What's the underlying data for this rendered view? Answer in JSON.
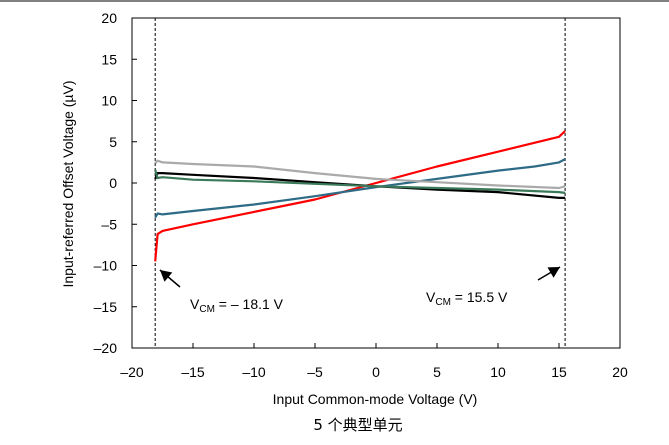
{
  "chart_data": {
    "type": "line",
    "title": "",
    "xlabel": "Input Common-mode Voltage (V)",
    "ylabel": "Input-referred Offset Voltage (µV)",
    "caption": "5 个典型单元",
    "xlim": [
      -20,
      20
    ],
    "ylim": [
      -20,
      20
    ],
    "x_ticks": [
      -20,
      -15,
      -10,
      -5,
      0,
      5,
      10,
      15,
      20
    ],
    "y_ticks": [
      -20,
      -15,
      -10,
      -5,
      0,
      5,
      10,
      15,
      20
    ],
    "x_tick_labels": [
      "–20",
      "–15",
      "–10",
      "–5",
      "0",
      "5",
      "10",
      "15",
      "20"
    ],
    "y_tick_labels": [
      "–20",
      "–15",
      "–10",
      "–5",
      "0",
      "5",
      "10",
      "15",
      "20"
    ],
    "grid": false,
    "series": [
      {
        "color": "#ff0000",
        "x": [
          -18.1,
          -17.9,
          -17.5,
          -15,
          -10,
          -5,
          0,
          5,
          10,
          15,
          15.5
        ],
        "y": [
          -9.5,
          -6.2,
          -5.8,
          -5.0,
          -3.5,
          -2.0,
          0.0,
          2.0,
          3.8,
          5.6,
          6.3
        ]
      },
      {
        "color": "#2e6b86",
        "x": [
          -18.1,
          -17.9,
          -17.5,
          -15,
          -10,
          -5,
          0,
          5,
          10,
          13,
          15,
          15.5
        ],
        "y": [
          -4.2,
          -3.7,
          -3.8,
          -3.4,
          -2.6,
          -1.6,
          -0.5,
          0.5,
          1.5,
          2.0,
          2.5,
          2.9
        ]
      },
      {
        "color": "#000000",
        "x": [
          -18.1,
          -17.9,
          -17.5,
          -15,
          -10,
          -5,
          0,
          5,
          10,
          15,
          15.5
        ],
        "y": [
          0.5,
          1.2,
          1.2,
          1.0,
          0.6,
          0.1,
          -0.4,
          -0.8,
          -1.1,
          -1.8,
          -1.8
        ]
      },
      {
        "color": "#aaaaaa",
        "x": [
          -18.1,
          -17.9,
          -17.5,
          -15,
          -10,
          -5,
          0,
          5,
          10,
          15,
          15.5
        ],
        "y": [
          2.4,
          2.7,
          2.5,
          2.3,
          2.0,
          1.2,
          0.5,
          0.1,
          -0.3,
          -0.6,
          -0.4
        ]
      },
      {
        "color": "#3a7a5a",
        "x": [
          -18.1,
          -17.9,
          -17.5,
          -15,
          -10,
          -5,
          0,
          5,
          10,
          15,
          15.5
        ],
        "y": [
          1.6,
          0.6,
          0.7,
          0.4,
          0.2,
          -0.1,
          -0.4,
          -0.6,
          -0.8,
          -1.1,
          -1.2
        ]
      }
    ],
    "annotations": [
      {
        "prefix": "V",
        "sub": "CM",
        "suffix": " = – 18.1 V",
        "marker_x": -18.1
      },
      {
        "prefix": "V",
        "sub": "CM",
        "suffix": " = 15.5 V",
        "marker_x": 15.5
      }
    ]
  }
}
